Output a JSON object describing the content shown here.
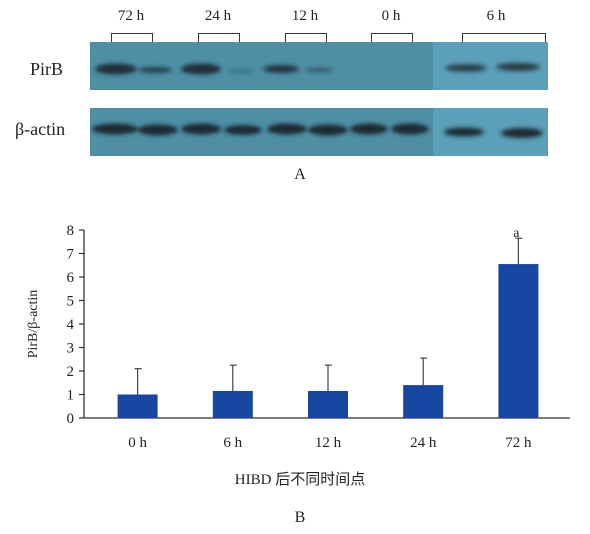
{
  "panel_a": {
    "time_labels": [
      "72 h",
      "24 h",
      "12 h",
      "0 h",
      "6 h"
    ],
    "row_labels": [
      "PirB",
      "β-actin"
    ],
    "caption": "A"
  },
  "panel_b": {
    "caption": "B",
    "significance_mark": "a"
  },
  "colors": {
    "bar": "#1746a2",
    "blot_bg": "#4e8fa6",
    "blot_bg_alt": "#5b9fb8",
    "band": "#1e2a30"
  },
  "chart_data": {
    "type": "bar",
    "categories": [
      "0 h",
      "6 h",
      "12 h",
      "24 h",
      "72 h"
    ],
    "values": [
      1.0,
      1.15,
      1.15,
      1.4,
      6.55
    ],
    "error_upper": [
      2.1,
      2.25,
      2.25,
      2.55,
      7.65
    ],
    "title": "",
    "xlabel": "HIBD 后不同时间点",
    "ylabel": "PirB/β-actin",
    "ylim": [
      0,
      8
    ],
    "yticks": [
      "0",
      "1",
      "2",
      "3",
      "4",
      "5",
      "6",
      "7",
      "8"
    ],
    "annotations": [
      {
        "category": "72 h",
        "text": "a"
      }
    ],
    "grid": false,
    "legend": "none"
  }
}
